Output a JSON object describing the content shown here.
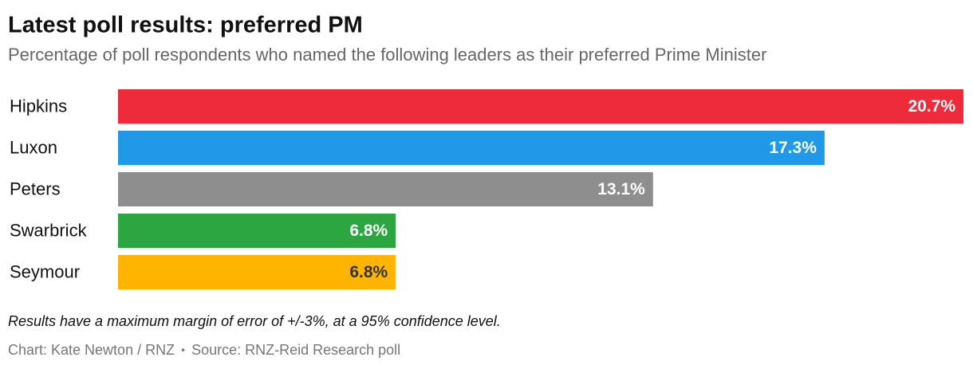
{
  "chart_data": {
    "type": "bar",
    "orientation": "horizontal",
    "title": "Latest poll results: preferred PM",
    "subtitle": "Percentage of poll respondents who named the following leaders as their preferred Prime Minister",
    "categories": [
      "Hipkins",
      "Luxon",
      "Peters",
      "Swarbrick",
      "Seymour"
    ],
    "values": [
      20.7,
      17.3,
      13.1,
      6.8,
      6.8
    ],
    "value_labels": [
      "20.7%",
      "17.3%",
      "13.1%",
      "6.8%",
      "6.8%"
    ],
    "colors": [
      "#ee2b3b",
      "#2199e8",
      "#8e8e8e",
      "#2ca640",
      "#ffb400"
    ],
    "annotation": "Results have a maximum margin of error of +/-3%, at a 95% confidence level.",
    "credit": "Chart: Kate Newton / RNZ",
    "source": "Source: RNZ-Reid Research poll"
  }
}
